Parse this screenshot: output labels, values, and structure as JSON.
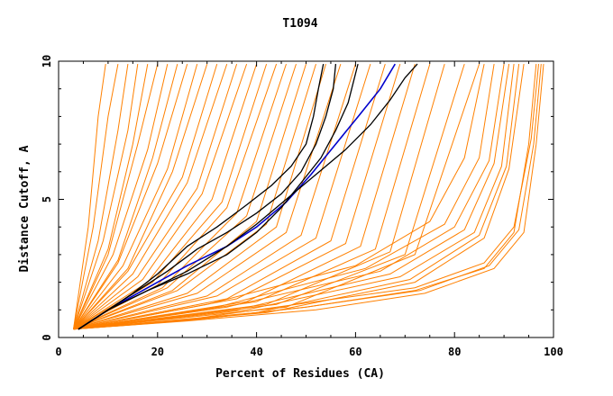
{
  "chart_data": {
    "type": "line",
    "title": "T1094",
    "xlabel": "Percent of Residues (CA)",
    "ylabel": "Distance Cutoff, A",
    "xlim": [
      0,
      100
    ],
    "ylim": [
      0,
      10
    ],
    "x_ticks": [
      "0",
      "20",
      "40",
      "60",
      "80",
      "100"
    ],
    "y_ticks": [
      "0",
      "5",
      "10"
    ],
    "grid": false,
    "colors": {
      "background_series": "#ff8000",
      "highlight": "#000000",
      "reference": "#0000cc",
      "axis": "#000000"
    },
    "highlight_series": [
      {
        "x": [
          4,
          10,
          15,
          20,
          26,
          32,
          38,
          43,
          47,
          50,
          51.5,
          52.5,
          53.5
        ],
        "y": [
          0.3,
          1.0,
          1.6,
          2.3,
          3.3,
          4.0,
          4.8,
          5.5,
          6.2,
          7.0,
          8.0,
          9.0,
          9.9
        ]
      },
      {
        "x": [
          4,
          10,
          16,
          22,
          28,
          34,
          40,
          45,
          49,
          52,
          54,
          55.5,
          56
        ],
        "y": [
          0.3,
          1.0,
          1.7,
          2.4,
          3.2,
          3.8,
          4.5,
          5.2,
          6.0,
          7.0,
          8.0,
          9.0,
          9.9
        ]
      },
      {
        "x": [
          4,
          10,
          18,
          26,
          34,
          40,
          45,
          49,
          53,
          56,
          58.5,
          60.5
        ],
        "y": [
          0.3,
          1.0,
          1.7,
          2.3,
          3.0,
          3.8,
          4.7,
          5.6,
          6.5,
          7.5,
          8.5,
          9.9
        ]
      },
      {
        "x": [
          4,
          10,
          18,
          26,
          34,
          40,
          46,
          52,
          58,
          63,
          67,
          70,
          72.5
        ],
        "y": [
          0.3,
          1.0,
          1.7,
          2.4,
          3.3,
          4.1,
          5.0,
          5.9,
          6.8,
          7.7,
          8.6,
          9.4,
          9.9
        ]
      }
    ],
    "reference_series": {
      "x": [
        4,
        10,
        18,
        26,
        34,
        40,
        46,
        51,
        56,
        61,
        65,
        68
      ],
      "y": [
        0.3,
        1.0,
        1.8,
        2.6,
        3.3,
        4.0,
        4.9,
        5.9,
        7.0,
        8.1,
        9.0,
        9.9
      ]
    },
    "background_series": [
      {
        "x": [
          3,
          6,
          8,
          9.5
        ],
        "y": [
          0.3,
          4,
          8,
          9.9
        ]
      },
      {
        "x": [
          3,
          7,
          10,
          12
        ],
        "y": [
          0.3,
          4,
          8,
          9.9
        ]
      },
      {
        "x": [
          3,
          8,
          12,
          14
        ],
        "y": [
          0.3,
          3.5,
          7.5,
          9.9
        ]
      },
      {
        "x": [
          3,
          9,
          14,
          16
        ],
        "y": [
          0.3,
          3.5,
          7.5,
          9.9
        ]
      },
      {
        "x": [
          3,
          10,
          15,
          18
        ],
        "y": [
          0.3,
          3.2,
          7,
          9.9
        ]
      },
      {
        "x": [
          3,
          10,
          16,
          20
        ],
        "y": [
          0.3,
          3,
          7,
          9.9
        ]
      },
      {
        "x": [
          3,
          11,
          18,
          22
        ],
        "y": [
          0.3,
          3,
          6.8,
          9.9
        ]
      },
      {
        "x": [
          3,
          12,
          19,
          24
        ],
        "y": [
          0.3,
          2.8,
          6.5,
          9.9
        ]
      },
      {
        "x": [
          3,
          12,
          20,
          26
        ],
        "y": [
          0.3,
          2.7,
          6.3,
          9.9
        ]
      },
      {
        "x": [
          3,
          13,
          22,
          28
        ],
        "y": [
          0.3,
          2.6,
          6.1,
          9.9
        ]
      },
      {
        "x": [
          3,
          14,
          23,
          30
        ],
        "y": [
          0.3,
          2.5,
          6,
          9.9
        ]
      },
      {
        "x": [
          3,
          14,
          25,
          32
        ],
        "y": [
          0.3,
          2.4,
          5.8,
          9.9
        ]
      },
      {
        "x": [
          3,
          15,
          26,
          34
        ],
        "y": [
          0.3,
          2.3,
          5.6,
          9.9
        ]
      },
      {
        "x": [
          3,
          16,
          28,
          36
        ],
        "y": [
          0.3,
          2.2,
          5.4,
          9.9
        ]
      },
      {
        "x": [
          3,
          17,
          29,
          38
        ],
        "y": [
          0.3,
          2.1,
          5.2,
          9.9
        ]
      },
      {
        "x": [
          3,
          18,
          31,
          40
        ],
        "y": [
          0.3,
          2,
          5,
          9.9
        ]
      },
      {
        "x": [
          3,
          19,
          33,
          42
        ],
        "y": [
          0.3,
          2,
          4.9,
          9.9
        ]
      },
      {
        "x": [
          3,
          20,
          34,
          44
        ],
        "y": [
          0.3,
          1.9,
          4.7,
          9.9
        ]
      },
      {
        "x": [
          3,
          21,
          36,
          46
        ],
        "y": [
          0.3,
          1.8,
          4.5,
          9.9
        ]
      },
      {
        "x": [
          3,
          22,
          38,
          48
        ],
        "y": [
          0.3,
          1.8,
          4.4,
          9.9
        ]
      },
      {
        "x": [
          3,
          23,
          40,
          50
        ],
        "y": [
          0.3,
          1.7,
          4.2,
          9.9
        ]
      },
      {
        "x": [
          3,
          24,
          42,
          52
        ],
        "y": [
          0.3,
          1.7,
          4.1,
          9.9
        ]
      },
      {
        "x": [
          3,
          26,
          44,
          54
        ],
        "y": [
          0.3,
          1.6,
          4,
          9.9
        ]
      },
      {
        "x": [
          3,
          28,
          46,
          57
        ],
        "y": [
          0.3,
          1.6,
          3.8,
          9.9
        ]
      },
      {
        "x": [
          3,
          30,
          49,
          60
        ],
        "y": [
          0.3,
          1.5,
          3.7,
          9.9
        ]
      },
      {
        "x": [
          3,
          32,
          52,
          63
        ],
        "y": [
          0.3,
          1.5,
          3.6,
          9.9
        ]
      },
      {
        "x": [
          3,
          34,
          55,
          66
        ],
        "y": [
          0.3,
          1.4,
          3.5,
          9.9
        ]
      },
      {
        "x": [
          3,
          36,
          58,
          69
        ],
        "y": [
          0.3,
          1.4,
          3.4,
          9.9
        ]
      },
      {
        "x": [
          3,
          38,
          61,
          72
        ],
        "y": [
          0.3,
          1.3,
          3.3,
          9.9
        ]
      },
      {
        "x": [
          3,
          40,
          64,
          75
        ],
        "y": [
          0.3,
          1.3,
          3.2,
          9.9
        ]
      },
      {
        "x": [
          3,
          42,
          67,
          78
        ],
        "y": [
          0.3,
          1.2,
          3.1,
          9.9
        ]
      },
      {
        "x": [
          3,
          44,
          70,
          82
        ],
        "y": [
          0.3,
          1.2,
          3,
          9.9
        ]
      },
      {
        "x": [
          3,
          46,
          72,
          85
        ],
        "y": [
          0.3,
          1.1,
          3,
          9.9
        ]
      },
      {
        "x": [
          3,
          30,
          60,
          75,
          82,
          86
        ],
        "y": [
          0.3,
          1.2,
          2.6,
          4.2,
          6.5,
          9.9
        ]
      },
      {
        "x": [
          3,
          32,
          62,
          78,
          85,
          88
        ],
        "y": [
          0.3,
          1.1,
          2.5,
          4.1,
          6.5,
          9.9
        ]
      },
      {
        "x": [
          3,
          34,
          65,
          80,
          87,
          90
        ],
        "y": [
          0.3,
          1.1,
          2.4,
          4,
          6.4,
          9.9
        ]
      },
      {
        "x": [
          3,
          36,
          67,
          82,
          88,
          91
        ],
        "y": [
          0.3,
          1,
          2.3,
          3.9,
          6.3,
          9.9
        ]
      },
      {
        "x": [
          3,
          38,
          69,
          84,
          89.5,
          92
        ],
        "y": [
          0.3,
          1,
          2.2,
          3.8,
          6.2,
          9.9
        ]
      },
      {
        "x": [
          3,
          40,
          71,
          85,
          90.5,
          93
        ],
        "y": [
          0.3,
          0.9,
          2.1,
          3.7,
          6.2,
          9.9
        ]
      },
      {
        "x": [
          3,
          42,
          72,
          86,
          91,
          94
        ],
        "y": [
          0.3,
          0.9,
          2,
          3.6,
          6.1,
          9.9
        ]
      },
      {
        "x": [
          3,
          25,
          50,
          72,
          86,
          92,
          95,
          96.5
        ],
        "y": [
          0.3,
          0.6,
          1.1,
          1.7,
          2.5,
          3.8,
          7,
          9.9
        ]
      },
      {
        "x": [
          3,
          25,
          50,
          73,
          87,
          93,
          96,
          97.5
        ],
        "y": [
          0.3,
          0.6,
          1.1,
          1.7,
          2.6,
          3.9,
          7,
          9.9
        ]
      },
      {
        "x": [
          3,
          24,
          48,
          72,
          86,
          92,
          95.5,
          97
        ],
        "y": [
          0.3,
          0.6,
          1.2,
          1.8,
          2.7,
          4,
          7.2,
          9.9
        ]
      },
      {
        "x": [
          3,
          26,
          52,
          74,
          88,
          94,
          96.5,
          98
        ],
        "y": [
          0.3,
          0.6,
          1,
          1.6,
          2.5,
          3.8,
          7,
          9.9
        ]
      }
    ]
  }
}
